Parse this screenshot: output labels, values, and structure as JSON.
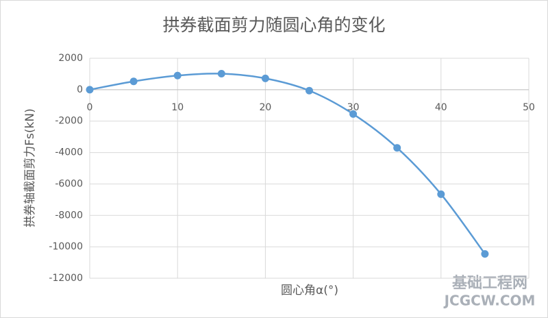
{
  "chart_data": {
    "type": "scatter_smooth",
    "title": "拱券截面剪力随圆心角的变化",
    "x_label": "圆心角α(°)",
    "y_label": "拱券轴截面剪力Fs(kN)",
    "x": [
      0,
      5,
      10,
      15,
      20,
      25,
      30,
      35,
      40,
      45
    ],
    "series": [
      {
        "color": "#5b9bd5",
        "values": [
          0,
          530,
          900,
          1020,
          720,
          -60,
          -1550,
          -3700,
          -6650,
          -10450
        ]
      }
    ],
    "xlim": [
      0,
      50
    ],
    "xticks": [
      0,
      10,
      20,
      30,
      40,
      50
    ],
    "ylim": [
      -12000,
      2000
    ],
    "yticks": [
      -12000,
      -10000,
      -8000,
      -6000,
      -4000,
      -2000,
      0,
      2000
    ],
    "grid": true
  },
  "watermark": {
    "name": "基础工程网",
    "url": "JCGCW.COM"
  }
}
